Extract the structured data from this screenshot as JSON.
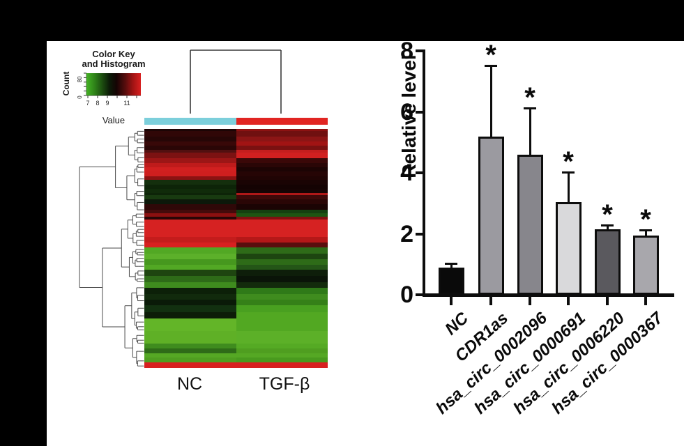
{
  "heatmap": {
    "color_key": {
      "title1": "Color Key",
      "title2": "and Histogram",
      "count_label": "Count",
      "count_ticks": [
        {
          "label": "0",
          "t": 0
        },
        {
          "label": "",
          "t": 20
        },
        {
          "label": "",
          "t": 40
        },
        {
          "label": "",
          "t": 60
        },
        {
          "label": "80",
          "t": 80
        },
        {
          "label": "",
          "t": 100
        }
      ],
      "value_label": "Value",
      "value_ticks": [
        {
          "label": "7",
          "v": 7
        },
        {
          "label": "8",
          "v": 8
        },
        {
          "label": "9",
          "v": 9
        },
        {
          "label": "",
          "v": 10
        },
        {
          "label": "11",
          "v": 11
        },
        {
          "label": "",
          "v": 12
        }
      ],
      "gradient_stops": [
        "#45b324",
        "#2d7f18",
        "#0c1c08",
        "#140404",
        "#5a0d0d",
        "#a31414",
        "#d92020"
      ],
      "histogram_color": "#8fd6e0"
    },
    "columns": [
      {
        "label": "NC",
        "group_color": "#7ccfdb"
      },
      {
        "label": "TGF-β",
        "group_color": "#e12522"
      }
    ]
  },
  "chart_data": [
    {
      "type": "heatmap",
      "title": "",
      "columns": [
        "NC",
        "TGF-β"
      ],
      "column_group_colors": [
        "#7ccfdb",
        "#e12522"
      ],
      "value_scale_range": [
        7,
        12
      ],
      "count_scale_range": [
        0,
        100
      ],
      "row_bands": [
        {
          "h": 3,
          "nc": "#1c0505",
          "tgf": "#8c1212"
        },
        {
          "h": 8,
          "nc": "#300707",
          "tgf": "#701010"
        },
        {
          "h": 7,
          "nc": "#260606",
          "tgf": "#8c1515"
        },
        {
          "h": 6,
          "nc": "#380808",
          "tgf": "#a11414"
        },
        {
          "h": 6,
          "nc": "#2a0606",
          "tgf": "#7a1111"
        },
        {
          "h": 4,
          "nc": "#521010",
          "tgf": "#c41e1e"
        },
        {
          "h": 8,
          "nc": "#7c1212",
          "tgf": "#d12020"
        },
        {
          "h": 7,
          "nc": "#9c1616",
          "tgf": "#3a0808"
        },
        {
          "h": 6,
          "nc": "#bf1b1b",
          "tgf": "#2a0606"
        },
        {
          "h": 6,
          "nc": "#d12020",
          "tgf": "#1c0404"
        },
        {
          "h": 7,
          "nc": "#cf1f1f",
          "tgf": "#260505"
        },
        {
          "h": 5,
          "nc": "#8c1212",
          "tgf": "#200404"
        },
        {
          "h": 7,
          "nc": "#142f0d",
          "tgf": "#1a0404"
        },
        {
          "h": 6,
          "nc": "#0d2408",
          "tgf": "#140303"
        },
        {
          "h": 6,
          "nc": "#102b0a",
          "tgf": "#160404"
        },
        {
          "h": 3,
          "nc": "#0d2408",
          "tgf": "#b01818"
        },
        {
          "h": 6,
          "nc": "#183a10",
          "tgf": "#3e0909"
        },
        {
          "h": 7,
          "nc": "#0c180a",
          "tgf": "#2a0606"
        },
        {
          "h": 8,
          "nc": "#2f0808",
          "tgf": "#1b0404"
        },
        {
          "h": 5,
          "nc": "#440b0b",
          "tgf": "#144010"
        },
        {
          "h": 5,
          "nc": "#8c1010",
          "tgf": "#1d5512"
        },
        {
          "h": 4,
          "nc": "#2a0606",
          "tgf": "#801010"
        },
        {
          "h": 25,
          "nc": "#d62222",
          "tgf": "#d62222"
        },
        {
          "h": 8,
          "nc": "#c41c1c",
          "tgf": "#b51818"
        },
        {
          "h": 7,
          "nc": "#d82020",
          "tgf": "#5a0e0e"
        },
        {
          "h": 9,
          "nc": "#52a824",
          "tgf": "#2e6b18"
        },
        {
          "h": 8,
          "nc": "#5cb02a",
          "tgf": "#1d4510"
        },
        {
          "h": 8,
          "nc": "#46981e",
          "tgf": "#2e6b18"
        },
        {
          "h": 7,
          "nc": "#52a824",
          "tgf": "#245517"
        },
        {
          "h": 9,
          "nc": "#1e4510",
          "tgf": "#0e1e0a"
        },
        {
          "h": 9,
          "nc": "#2e6b18",
          "tgf": "#0a1408"
        },
        {
          "h": 8,
          "nc": "#3f8c1e",
          "tgf": "#132b0c"
        },
        {
          "h": 9,
          "nc": "#0c2008",
          "tgf": "#2f7a18"
        },
        {
          "h": 8,
          "nc": "#112a0c",
          "tgf": "#3f8c1e"
        },
        {
          "h": 8,
          "nc": "#0a1a08",
          "tgf": "#358018"
        },
        {
          "h": 10,
          "nc": "#123010",
          "tgf": "#49a020"
        },
        {
          "h": 9,
          "nc": "#0d1d08",
          "tgf": "#52a822"
        },
        {
          "h": 18,
          "nc": "#63b528",
          "tgf": "#52a822"
        },
        {
          "h": 18,
          "nc": "#5fb026",
          "tgf": "#5cb028"
        },
        {
          "h": 7,
          "nc": "#3f8c1e",
          "tgf": "#55aa24"
        },
        {
          "h": 7,
          "nc": "#2e6b18",
          "tgf": "#4f9e20"
        },
        {
          "h": 6,
          "nc": "#55a824",
          "tgf": "#55a824"
        },
        {
          "h": 7,
          "nc": "#4f9e20",
          "tgf": "#499a1e"
        },
        {
          "h": 8,
          "nc": "#d82020",
          "tgf": "#d82020"
        }
      ]
    },
    {
      "type": "bar",
      "title": "",
      "categories": [
        "NC",
        "CDR1as",
        "hsa_circ_0002096",
        "hsa_circ_0000691",
        "hsa_circ_0006220",
        "hsa_circ_0000367"
      ],
      "values": [
        0.9,
        5.2,
        4.6,
        3.05,
        2.15,
        1.95
      ],
      "errors_plus": [
        0.15,
        2.35,
        1.55,
        1.0,
        0.17,
        0.2
      ],
      "significance": [
        "",
        "*",
        "*",
        "*",
        "*",
        "*"
      ],
      "bar_colors": [
        "#0a0a0a",
        "#9b9aa0",
        "#87868c",
        "#d9d9db",
        "#5a595e",
        "#a8a7ac"
      ],
      "xlabel": "",
      "ylabel": "Relative level",
      "ylim": [
        0,
        8
      ],
      "yticks": [
        "0",
        "2",
        "4",
        "6",
        "8"
      ],
      "grid": false,
      "legend": false
    }
  ]
}
